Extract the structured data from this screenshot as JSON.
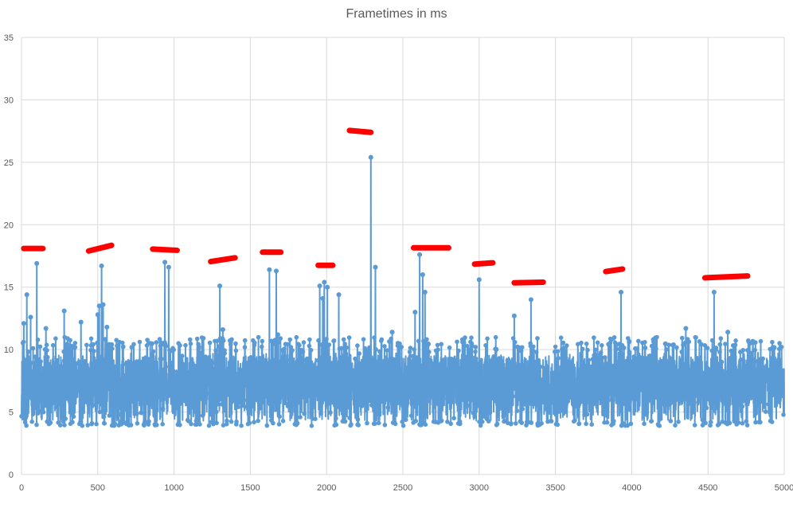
{
  "chart_data": {
    "type": "line",
    "title": "Frametimes in ms",
    "xlabel": "",
    "ylabel": "",
    "xlim": [
      0,
      5000
    ],
    "ylim": [
      0,
      35
    ],
    "x_ticks": [
      "0",
      "500",
      "1000",
      "1500",
      "2000",
      "2500",
      "3000",
      "3500",
      "4000",
      "4500",
      "5000"
    ],
    "y_ticks": [
      "0",
      "5",
      "10",
      "15",
      "20",
      "25",
      "30",
      "35"
    ],
    "grid": true,
    "legend": "none",
    "series_color": "#5b9bd5",
    "annotation_color": "#ff0000",
    "series": [
      {
        "baseline_band": [
          3.5,
          11
        ],
        "spikes": [
          {
            "x": 15,
            "y": 12.1
          },
          {
            "x": 35,
            "y": 14.4
          },
          {
            "x": 60,
            "y": 12.6
          },
          {
            "x": 100,
            "y": 16.9
          },
          {
            "x": 160,
            "y": 11.7
          },
          {
            "x": 280,
            "y": 13.1
          },
          {
            "x": 390,
            "y": 12.2
          },
          {
            "x": 500,
            "y": 12.8
          },
          {
            "x": 510,
            "y": 13.5
          },
          {
            "x": 525,
            "y": 16.7
          },
          {
            "x": 535,
            "y": 13.6
          },
          {
            "x": 560,
            "y": 11.8
          },
          {
            "x": 940,
            "y": 17.0
          },
          {
            "x": 965,
            "y": 16.6
          },
          {
            "x": 1300,
            "y": 15.1
          },
          {
            "x": 1320,
            "y": 11.6
          },
          {
            "x": 1625,
            "y": 16.4
          },
          {
            "x": 1670,
            "y": 16.3
          },
          {
            "x": 1680,
            "y": 11.2
          },
          {
            "x": 1955,
            "y": 15.1
          },
          {
            "x": 1975,
            "y": 14.1
          },
          {
            "x": 1985,
            "y": 15.4
          },
          {
            "x": 2005,
            "y": 15.0
          },
          {
            "x": 2080,
            "y": 14.4
          },
          {
            "x": 2290,
            "y": 25.4
          },
          {
            "x": 2320,
            "y": 16.6
          },
          {
            "x": 2430,
            "y": 11.4
          },
          {
            "x": 2580,
            "y": 13.0
          },
          {
            "x": 2610,
            "y": 17.6
          },
          {
            "x": 2630,
            "y": 16.0
          },
          {
            "x": 2645,
            "y": 14.6
          },
          {
            "x": 3000,
            "y": 15.6
          },
          {
            "x": 3230,
            "y": 12.7
          },
          {
            "x": 3340,
            "y": 14.0
          },
          {
            "x": 3930,
            "y": 14.6
          },
          {
            "x": 4355,
            "y": 11.7
          },
          {
            "x": 4540,
            "y": 14.6
          },
          {
            "x": 4630,
            "y": 11.4
          }
        ]
      }
    ],
    "annotations": [
      {
        "x0": 15,
        "x1": 140,
        "y0": 18.1,
        "y1": 18.1
      },
      {
        "x0": 440,
        "x1": 590,
        "y0": 17.9,
        "y1": 18.35
      },
      {
        "x0": 860,
        "x1": 1020,
        "y0": 18.05,
        "y1": 17.95
      },
      {
        "x0": 1240,
        "x1": 1400,
        "y0": 17.05,
        "y1": 17.35
      },
      {
        "x0": 1580,
        "x1": 1700,
        "y0": 17.8,
        "y1": 17.8
      },
      {
        "x0": 1945,
        "x1": 2040,
        "y0": 16.75,
        "y1": 16.75
      },
      {
        "x0": 2150,
        "x1": 2290,
        "y0": 27.55,
        "y1": 27.4
      },
      {
        "x0": 2570,
        "x1": 2800,
        "y0": 18.15,
        "y1": 18.15
      },
      {
        "x0": 2970,
        "x1": 3090,
        "y0": 16.85,
        "y1": 16.95
      },
      {
        "x0": 3230,
        "x1": 3420,
        "y0": 15.35,
        "y1": 15.4
      },
      {
        "x0": 3830,
        "x1": 3940,
        "y0": 16.25,
        "y1": 16.45
      },
      {
        "x0": 4480,
        "x1": 4760,
        "y0": 15.75,
        "y1": 15.9
      }
    ]
  }
}
